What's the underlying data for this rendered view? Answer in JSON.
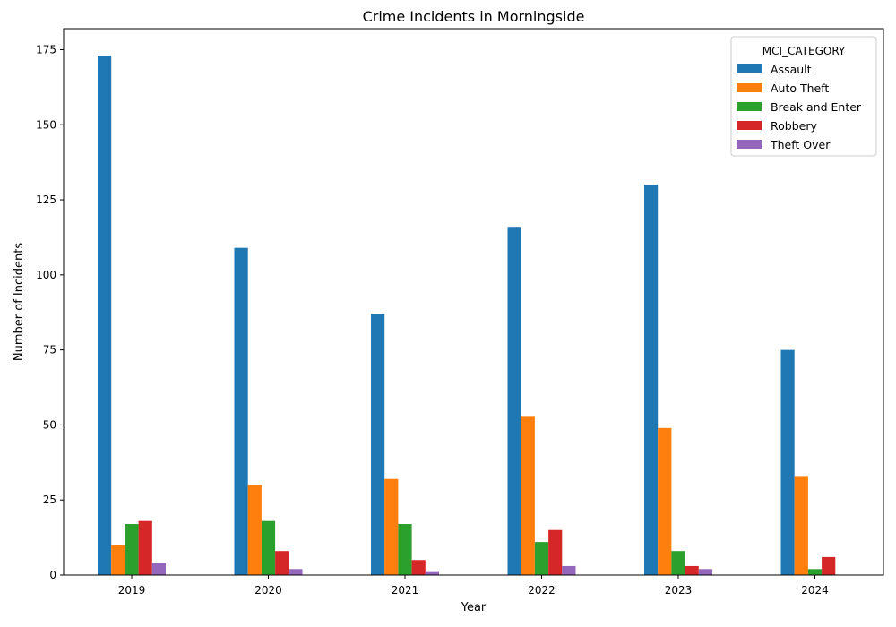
{
  "chart_data": {
    "type": "bar",
    "title": "Crime Incidents in Morningside",
    "xlabel": "Year",
    "ylabel": "Number of Incidents",
    "categories": [
      "2019",
      "2020",
      "2021",
      "2022",
      "2023",
      "2024"
    ],
    "ylim": [
      0,
      182
    ],
    "yticks": [
      0,
      25,
      50,
      75,
      100,
      125,
      150,
      175
    ],
    "legend_title": "MCI_CATEGORY",
    "legend_position": "top-right",
    "grid": false,
    "series": [
      {
        "name": "Assault",
        "color": "#1f77b4",
        "values": [
          173,
          109,
          87,
          116,
          130,
          75
        ]
      },
      {
        "name": "Auto Theft",
        "color": "#ff7f0e",
        "values": [
          10,
          30,
          32,
          53,
          49,
          33
        ]
      },
      {
        "name": "Break and Enter",
        "color": "#2ca02c",
        "values": [
          17,
          18,
          17,
          11,
          8,
          2
        ]
      },
      {
        "name": "Robbery",
        "color": "#d62728",
        "values": [
          18,
          8,
          5,
          15,
          3,
          6
        ]
      },
      {
        "name": "Theft Over",
        "color": "#9467bd",
        "values": [
          4,
          2,
          1,
          3,
          2,
          0
        ]
      }
    ]
  }
}
